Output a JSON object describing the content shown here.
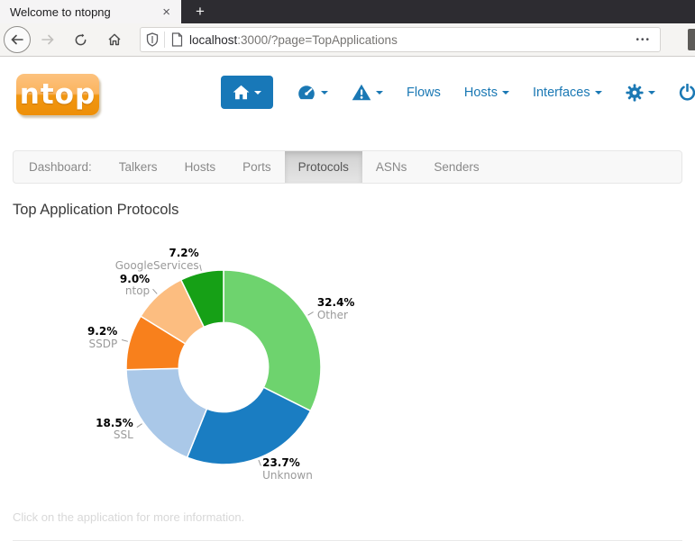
{
  "browser": {
    "tab_title": "Welcome to ntopng",
    "close_glyph": "×",
    "new_tab_glyph": "+",
    "url_host": "localhost",
    "url_rest": ":3000/?page=TopApplications",
    "ellipsis_glyph": "•••"
  },
  "nav": {
    "flows_label": "Flows",
    "hosts_label": "Hosts",
    "interfaces_label": "Interfaces",
    "icons": [
      "home-icon",
      "dashboard-gauge-icon",
      "alerts-warning-icon",
      "settings-gear-icon",
      "power-icon"
    ]
  },
  "logo_text": "ntop",
  "subnav": {
    "prefix": "Dashboard:",
    "items": [
      "Talkers",
      "Hosts",
      "Ports",
      "Protocols",
      "ASNs",
      "Senders"
    ],
    "active": "Protocols"
  },
  "page": {
    "title": "Top Application Protocols",
    "footer_note": "Click on the application for more information."
  },
  "chart_data": {
    "type": "pie",
    "donut": true,
    "title": "Top Application Protocols",
    "labels": [
      "Other",
      "Unknown",
      "SSL",
      "SSDP",
      "ntop",
      "GoogleServices"
    ],
    "values": [
      32.4,
      23.7,
      18.5,
      9.2,
      9.0,
      7.2
    ],
    "colors": [
      "#6ed36e",
      "#1a7dc2",
      "#aac8e8",
      "#f8801c",
      "#fcbd80",
      "#16a016"
    ],
    "unit": "%",
    "start_angle_deg": 0,
    "direction": "clockwise",
    "inner_radius_ratio": 0.46,
    "legend": "outside-labels"
  }
}
